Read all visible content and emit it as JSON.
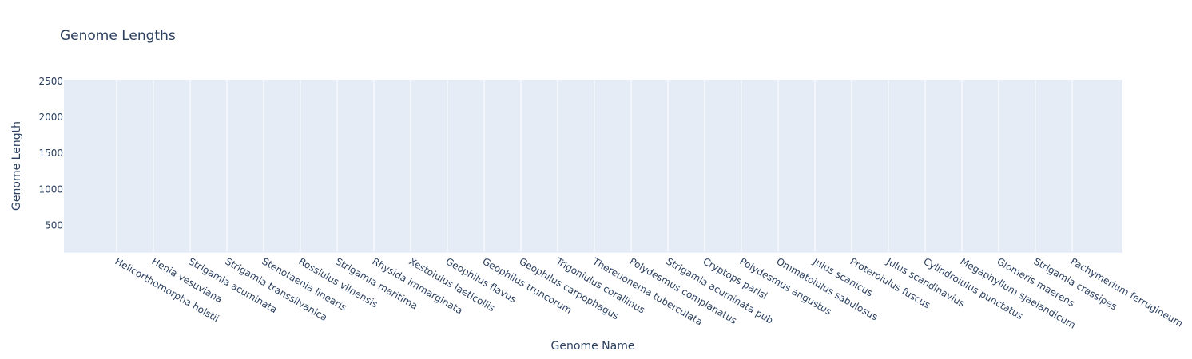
{
  "chart_data": {
    "type": "bar",
    "title": "Genome Lengths",
    "xlabel": "Genome Name",
    "ylabel": "Genome Length",
    "categories": [
      "Helicorthomorpha holstii",
      "Henia vesuviana",
      "Strigamia acuminata",
      "Strigamia transsilvanica",
      "Stenotaenia linearis",
      "Rossiulus vilnensis",
      "Strigamia maritima",
      "Rhysida immarginata",
      "Xestoiulus laeticollis",
      "Geophilus flavus",
      "Geophilus truncorum",
      "Geophilus carpophagus",
      "Trigoniulus corallinus",
      "Thereuonema tuberculata",
      "Polydesmus complanatus",
      "Strigamia acuminata pub",
      "Cryptops parisi",
      "Polydesmus angustus",
      "Ommatoiulus sabulosus",
      "Julus scanicus",
      "Proteroiulus fuscus",
      "Julus scandinavius",
      "Cylindroiulus punctatus",
      "Megaphyllum sjaelandicum",
      "Glomeris maerens",
      "Strigamia crassipes",
      "Pachymerium ferrugineum"
    ],
    "yticks": [
      500,
      1000,
      1500,
      2000,
      2500
    ],
    "ylim": [
      130,
      2520
    ],
    "grid": true,
    "legend": "none",
    "colors": {
      "plot_bg": "#e5ecf6",
      "grid": "#ffffff",
      "text": "#2a3f5f"
    }
  }
}
